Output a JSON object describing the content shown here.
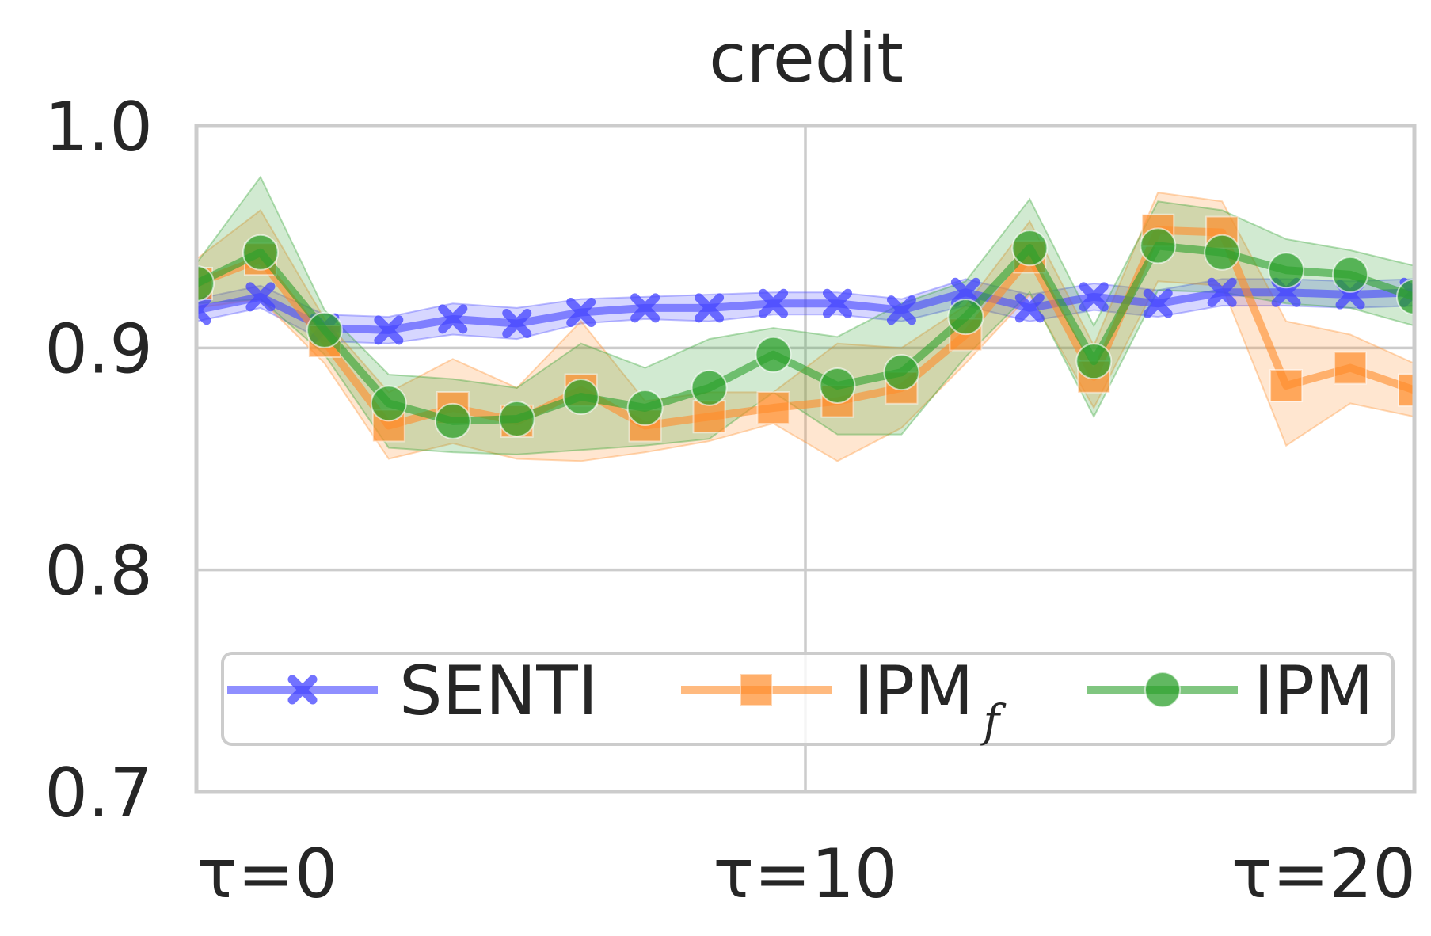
{
  "chart_data": {
    "type": "line",
    "title": "credit",
    "xlabel": "",
    "ylabel": "",
    "xlim": [
      0,
      19
    ],
    "ylim": [
      0.7,
      1.0
    ],
    "x_ticks": [
      {
        "value": 0,
        "label": "τ=0"
      },
      {
        "value": 9.5,
        "label": "τ=10"
      },
      {
        "value": 19,
        "label": "τ=20"
      }
    ],
    "y_ticks": [
      {
        "value": 0.7,
        "label": "0.7"
      },
      {
        "value": 0.8,
        "label": "0.8"
      },
      {
        "value": 0.9,
        "label": "0.9"
      },
      {
        "value": 1.0,
        "label": "1.0"
      }
    ],
    "grid": true,
    "legend_position": "lower-center",
    "x": [
      0,
      1,
      2,
      3,
      4,
      5,
      6,
      7,
      8,
      9,
      10,
      11,
      12,
      13,
      14,
      15,
      16,
      17,
      18,
      19,
      20
    ],
    "series": [
      {
        "name": "SENTI",
        "color": "#4444ff",
        "marker": "x",
        "values": [
          0.917,
          0.923,
          0.909,
          0.908,
          0.913,
          0.911,
          0.916,
          0.918,
          0.918,
          0.92,
          0.92,
          0.917,
          0.925,
          0.918,
          0.923,
          0.92,
          0.925,
          0.925,
          0.924,
          0.925,
          0.925
        ],
        "lower": [
          0.912,
          0.918,
          0.903,
          0.902,
          0.906,
          0.904,
          0.911,
          0.913,
          0.912,
          0.915,
          0.915,
          0.912,
          0.919,
          0.912,
          0.917,
          0.914,
          0.919,
          0.919,
          0.918,
          0.919,
          0.919
        ],
        "upper": [
          0.922,
          0.928,
          0.915,
          0.914,
          0.92,
          0.918,
          0.922,
          0.923,
          0.924,
          0.925,
          0.925,
          0.922,
          0.931,
          0.924,
          0.929,
          0.926,
          0.931,
          0.931,
          0.93,
          0.931,
          0.931
        ]
      },
      {
        "name": "IPM",
        "name_subscript": "f",
        "color": "#ff8c29",
        "marker": "s",
        "values": [
          0.929,
          0.94,
          0.903,
          0.865,
          0.873,
          0.867,
          0.881,
          0.865,
          0.869,
          0.873,
          0.876,
          0.882,
          0.906,
          0.941,
          0.887,
          0.953,
          0.952,
          0.883,
          0.891,
          0.881,
          0.877
        ],
        "lower": [
          0.918,
          0.922,
          0.893,
          0.85,
          0.857,
          0.85,
          0.849,
          0.853,
          0.858,
          0.866,
          0.849,
          0.864,
          0.893,
          0.924,
          0.873,
          0.93,
          0.928,
          0.856,
          0.875,
          0.869,
          0.865
        ],
        "upper": [
          0.94,
          0.962,
          0.913,
          0.88,
          0.895,
          0.882,
          0.912,
          0.876,
          0.88,
          0.88,
          0.902,
          0.9,
          0.919,
          0.957,
          0.901,
          0.97,
          0.966,
          0.912,
          0.906,
          0.893,
          0.889
        ]
      },
      {
        "name": "IPM",
        "color": "#2ca02c",
        "marker": "o",
        "values": [
          0.929,
          0.943,
          0.908,
          0.875,
          0.867,
          0.868,
          0.878,
          0.873,
          0.882,
          0.897,
          0.883,
          0.889,
          0.914,
          0.945,
          0.894,
          0.946,
          0.943,
          0.935,
          0.933,
          0.923,
          0.923
        ],
        "lower": [
          0.92,
          0.922,
          0.897,
          0.855,
          0.853,
          0.852,
          0.854,
          0.856,
          0.859,
          0.88,
          0.861,
          0.861,
          0.896,
          0.925,
          0.869,
          0.926,
          0.925,
          0.92,
          0.918,
          0.91,
          0.91
        ],
        "upper": [
          0.938,
          0.977,
          0.917,
          0.888,
          0.886,
          0.882,
          0.902,
          0.891,
          0.904,
          0.909,
          0.905,
          0.92,
          0.93,
          0.967,
          0.91,
          0.966,
          0.962,
          0.949,
          0.944,
          0.937,
          0.937
        ]
      }
    ]
  }
}
